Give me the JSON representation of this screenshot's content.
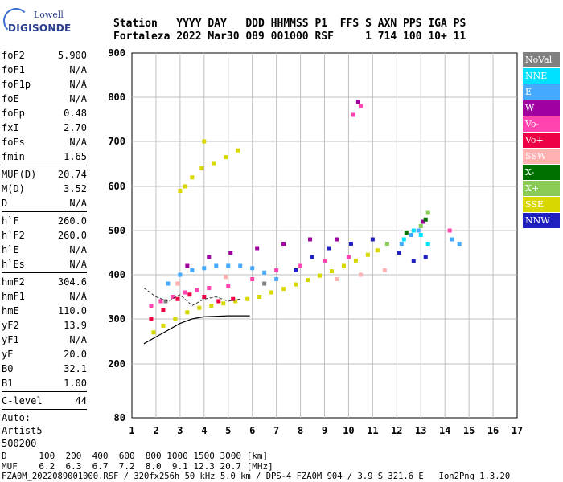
{
  "logo": {
    "top": "Lowell",
    "bottom": "DIGISONDE"
  },
  "header": {
    "row1": "Station   YYYY DAY   DDD HHMMSS P1  FFS S AXN PPS IGA PS",
    "row2": "Fortaleza 2022 Mar30 089 001000 RSF     1 714 100 10+ 11"
  },
  "params": {
    "group1": [
      {
        "label": "foF2",
        "value": "5.900"
      },
      {
        "label": "foF1",
        "value": "N/A"
      },
      {
        "label": "foF1p",
        "value": "N/A"
      },
      {
        "label": "foE",
        "value": "N/A"
      },
      {
        "label": "foEp",
        "value": "0.48"
      },
      {
        "label": "fxI",
        "value": "2.70"
      },
      {
        "label": "foEs",
        "value": "N/A"
      },
      {
        "label": "fmin",
        "value": "1.65"
      }
    ],
    "group2": [
      {
        "label": "MUF(D)",
        "value": "20.74"
      },
      {
        "label": "M(D)",
        "value": "3.52"
      },
      {
        "label": "D",
        "value": "N/A"
      }
    ],
    "group3": [
      {
        "label": "h`F",
        "value": "260.0"
      },
      {
        "label": "h`F2",
        "value": "260.0"
      },
      {
        "label": "h`E",
        "value": "N/A"
      },
      {
        "label": "h`Es",
        "value": "N/A"
      }
    ],
    "group4": [
      {
        "label": "hmF2",
        "value": "304.6"
      },
      {
        "label": "hmF1",
        "value": "N/A"
      },
      {
        "label": "hmE",
        "value": "110.0"
      },
      {
        "label": "yF2",
        "value": "13.9"
      },
      {
        "label": "yF1",
        "value": "N/A"
      },
      {
        "label": "yE",
        "value": "20.0"
      },
      {
        "label": "B0",
        "value": "32.1"
      },
      {
        "label": "B1",
        "value": "1.00"
      }
    ],
    "group5": [
      {
        "label": "C-level",
        "value": "44"
      }
    ],
    "auto": [
      "Auto:",
      "Artist5",
      "500200"
    ]
  },
  "legend": [
    {
      "label": "NoVal",
      "color": "#808080"
    },
    {
      "label": "NNE",
      "color": "#00e0ff"
    },
    {
      "label": "E",
      "color": "#44aaff"
    },
    {
      "label": "W",
      "color": "#a000a0"
    },
    {
      "label": "Vo-",
      "color": "#ff44b0"
    },
    {
      "label": "Vo+",
      "color": "#ee0044"
    },
    {
      "label": "SSW",
      "color": "#ffb0b0"
    },
    {
      "label": "X-",
      "color": "#007000"
    },
    {
      "label": "X+",
      "color": "#88cc55"
    },
    {
      "label": "SSE",
      "color": "#d8d800"
    },
    {
      "label": "NNW",
      "color": "#2020c0"
    }
  ],
  "chart_data": {
    "type": "scatter",
    "xlim": [
      1,
      17
    ],
    "ylim": [
      80,
      900
    ],
    "x_ticks": [
      "1",
      "2",
      "3",
      "4",
      "5",
      "6",
      "7",
      "8",
      "9",
      "10",
      "11",
      "12",
      "13",
      "14",
      "15",
      "16",
      "17"
    ],
    "y_ticks": [
      "80",
      "200",
      "300",
      "400",
      "500",
      "600",
      "700",
      "800",
      "900"
    ],
    "grid": true,
    "series": [
      {
        "name": "SSE",
        "color": "#d8d800",
        "points": [
          [
            1.9,
            270
          ],
          [
            2.3,
            285
          ],
          [
            2.8,
            300
          ],
          [
            3.3,
            315
          ],
          [
            3.8,
            325
          ],
          [
            4.3,
            330
          ],
          [
            4.8,
            335
          ],
          [
            5.3,
            340
          ],
          [
            5.8,
            345
          ],
          [
            6.3,
            350
          ],
          [
            6.8,
            360
          ],
          [
            7.3,
            368
          ],
          [
            7.8,
            378
          ],
          [
            8.3,
            388
          ],
          [
            8.8,
            398
          ],
          [
            9.3,
            408
          ],
          [
            9.8,
            420
          ],
          [
            10.3,
            432
          ],
          [
            10.8,
            445
          ],
          [
            11.2,
            455
          ],
          [
            3.2,
            600
          ],
          [
            3.5,
            620
          ],
          [
            3.9,
            640
          ],
          [
            4.4,
            650
          ],
          [
            4.9,
            665
          ],
          [
            5.4,
            680
          ],
          [
            3.0,
            590
          ],
          [
            4.0,
            700
          ]
        ]
      },
      {
        "name": "E",
        "color": "#44aaff",
        "points": [
          [
            2.5,
            380
          ],
          [
            3.0,
            400
          ],
          [
            3.5,
            410
          ],
          [
            4.0,
            415
          ],
          [
            4.5,
            420
          ],
          [
            5.0,
            420
          ],
          [
            5.5,
            420
          ],
          [
            6.0,
            415
          ],
          [
            6.5,
            405
          ],
          [
            7.0,
            390
          ],
          [
            12.2,
            470
          ],
          [
            12.6,
            490
          ],
          [
            12.9,
            500
          ],
          [
            14.3,
            480
          ],
          [
            14.6,
            470
          ]
        ]
      },
      {
        "name": "NNE",
        "color": "#00e0ff",
        "points": [
          [
            12.3,
            480
          ],
          [
            12.7,
            500
          ],
          [
            13.0,
            490
          ],
          [
            13.3,
            470
          ]
        ]
      },
      {
        "name": "Vo-",
        "color": "#ff44b0",
        "points": [
          [
            1.8,
            330
          ],
          [
            2.2,
            340
          ],
          [
            2.7,
            350
          ],
          [
            3.2,
            360
          ],
          [
            3.7,
            365
          ],
          [
            4.2,
            370
          ],
          [
            5.0,
            375
          ],
          [
            6.0,
            390
          ],
          [
            7.0,
            410
          ],
          [
            8.0,
            420
          ],
          [
            9.0,
            430
          ],
          [
            10.0,
            440
          ],
          [
            10.2,
            760
          ],
          [
            10.5,
            780
          ],
          [
            14.2,
            500
          ]
        ]
      },
      {
        "name": "Vo+",
        "color": "#ee0044",
        "points": [
          [
            1.8,
            300
          ],
          [
            2.3,
            320
          ],
          [
            2.9,
            345
          ],
          [
            3.4,
            355
          ],
          [
            4.0,
            350
          ],
          [
            4.6,
            340
          ],
          [
            5.2,
            345
          ]
        ]
      },
      {
        "name": "W",
        "color": "#a000a0",
        "points": [
          [
            3.3,
            420
          ],
          [
            4.2,
            440
          ],
          [
            5.1,
            450
          ],
          [
            6.2,
            460
          ],
          [
            7.3,
            470
          ],
          [
            8.4,
            480
          ],
          [
            9.5,
            480
          ],
          [
            10.4,
            790
          ],
          [
            13.1,
            520
          ]
        ]
      },
      {
        "name": "NNW",
        "color": "#2020c0",
        "points": [
          [
            7.8,
            410
          ],
          [
            8.5,
            440
          ],
          [
            9.2,
            460
          ],
          [
            10.1,
            470
          ],
          [
            11.0,
            480
          ],
          [
            12.1,
            450
          ],
          [
            12.7,
            430
          ],
          [
            13.2,
            440
          ]
        ]
      },
      {
        "name": "SSW",
        "color": "#ffb0b0",
        "points": [
          [
            9.5,
            390
          ],
          [
            10.5,
            400
          ],
          [
            11.5,
            410
          ],
          [
            2.9,
            380
          ],
          [
            4.9,
            395
          ]
        ]
      },
      {
        "name": "X+",
        "color": "#88cc55",
        "points": [
          [
            13.3,
            540
          ],
          [
            13.0,
            510
          ],
          [
            11.6,
            470
          ]
        ]
      },
      {
        "name": "X-",
        "color": "#007000",
        "points": [
          [
            13.2,
            525
          ],
          [
            12.4,
            495
          ]
        ]
      },
      {
        "name": "NoVal",
        "color": "#808080",
        "points": [
          [
            2.4,
            340
          ],
          [
            6.5,
            380
          ]
        ]
      }
    ],
    "profile_line": [
      [
        1.5,
        245
      ],
      [
        2.0,
        260
      ],
      [
        2.5,
        275
      ],
      [
        3.0,
        290
      ],
      [
        3.5,
        300
      ],
      [
        4.0,
        305
      ],
      [
        4.5,
        306
      ],
      [
        5.0,
        307
      ],
      [
        5.5,
        307
      ],
      [
        5.9,
        307
      ]
    ],
    "trace_line": [
      [
        1.5,
        370
      ],
      [
        2.0,
        350
      ],
      [
        2.5,
        340
      ],
      [
        3.0,
        355
      ],
      [
        3.5,
        330
      ],
      [
        4.0,
        345
      ],
      [
        4.5,
        350
      ],
      [
        5.0,
        340
      ],
      [
        5.5,
        345
      ]
    ]
  },
  "footer": {
    "d_row": "D      100  200  400  600  800 1000 1500 3000 [km]",
    "muf_row": "MUF    6.2  6.3  6.7  7.2  8.0  9.1 12.3 20.7 [MHz]",
    "info_row": "FZA0M_2022089001000.RSF / 320fx256h 50 kHz 5.0 km / DPS-4 FZA0M 904 / 3.9 S 321.6 E   Ion2Png 1.3.20"
  }
}
